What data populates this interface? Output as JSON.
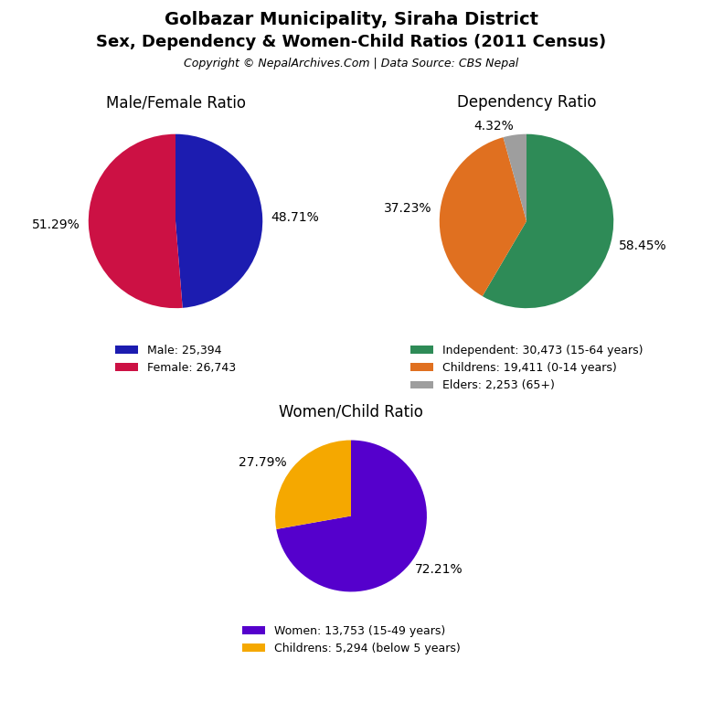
{
  "title": "Golbazar Municipality, Siraha District",
  "subtitle": "Sex, Dependency & Women-Child Ratios (2011 Census)",
  "annotations": [
    "Copyright © NepalArchives.Com | Data Source: CBS Nepal"
  ],
  "chart_data": [
    {
      "type": "pie",
      "title": "Male/Female Ratio",
      "categories": [
        "Male: 25,394",
        "Female: 26,743"
      ],
      "values": [
        48.71,
        51.29
      ],
      "value_labels": [
        "48.71%",
        "51.29%"
      ],
      "colors": [
        "#1c1cb0",
        "#cc1144"
      ],
      "data_labels": true,
      "legend": "upper center"
    },
    {
      "type": "pie",
      "title": "Dependency Ratio",
      "categories": [
        "Independent: 30,473 (15-64 years)",
        "Childrens: 19,411 (0-14 years)",
        "Elders: 2,253 (65+)"
      ],
      "values": [
        58.45,
        37.23,
        4.32
      ],
      "value_labels": [
        "58.45%",
        "37.23%",
        "4.32%"
      ],
      "colors": [
        "#2e8b57",
        "#e07020",
        "#9e9e9e"
      ],
      "data_labels": true,
      "legend": "upper center"
    },
    {
      "type": "pie",
      "title": "Women/Child Ratio",
      "categories": [
        "Women: 13,753 (15-49 years)",
        "Childrens: 5,294 (below 5 years)"
      ],
      "values": [
        72.21,
        27.79
      ],
      "value_labels": [
        "72.21%",
        "27.79%"
      ],
      "colors": [
        "#5500cc",
        "#f5a800"
      ],
      "data_labels": true,
      "legend": "upper center"
    }
  ]
}
